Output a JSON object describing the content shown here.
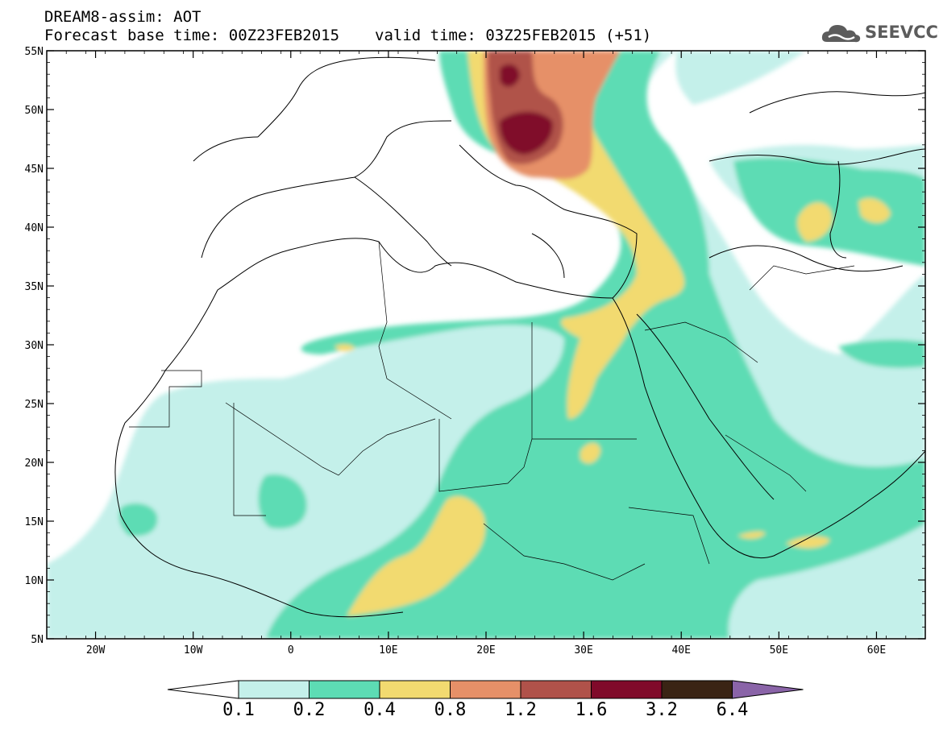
{
  "header": {
    "product": "DREAM8-assim: AOT",
    "base_time": "Forecast base time: 00Z23FEB2015",
    "valid_time": "valid time: 03Z25FEB2015 (+51)"
  },
  "logo": {
    "text": "SEEVCCC",
    "icon": "cloud-icon",
    "color": "#5c5c5c"
  },
  "map": {
    "lon_range": [
      -25,
      65
    ],
    "lat_range": [
      5,
      55
    ],
    "lat_ticks": [
      {
        "value": 55,
        "label": "55N"
      },
      {
        "value": 50,
        "label": "50N"
      },
      {
        "value": 45,
        "label": "45N"
      },
      {
        "value": 40,
        "label": "40N"
      },
      {
        "value": 35,
        "label": "35N"
      },
      {
        "value": 30,
        "label": "30N"
      },
      {
        "value": 25,
        "label": "25N"
      },
      {
        "value": 20,
        "label": "20N"
      },
      {
        "value": 15,
        "label": "15N"
      },
      {
        "value": 10,
        "label": "10N"
      },
      {
        "value": 5,
        "label": "5N"
      }
    ],
    "lon_ticks": [
      {
        "value": -20,
        "label": "20W"
      },
      {
        "value": -10,
        "label": "10W"
      },
      {
        "value": 0,
        "label": "0"
      },
      {
        "value": 10,
        "label": "10E"
      },
      {
        "value": 20,
        "label": "20E"
      },
      {
        "value": 30,
        "label": "30E"
      },
      {
        "value": 40,
        "label": "40E"
      },
      {
        "value": 50,
        "label": "50E"
      },
      {
        "value": 60,
        "label": "60E"
      }
    ]
  },
  "colorbar": {
    "levels": [
      "0.1",
      "0.2",
      "0.4",
      "0.8",
      "1.2",
      "1.6",
      "3.2",
      "6.4"
    ],
    "colors": [
      "#c4f0ea",
      "#5ddcb4",
      "#f2da70",
      "#e69068",
      "#b0524a",
      "#800a2a",
      "#3a2414",
      "#8a64a8"
    ],
    "under_color": "#ffffff"
  }
}
